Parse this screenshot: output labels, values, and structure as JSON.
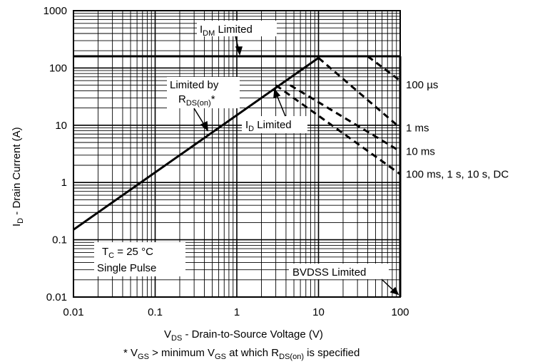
{
  "chart_data": {
    "type": "line",
    "scale": {
      "x": "log",
      "y": "log"
    },
    "xlim": [
      0.01,
      100
    ],
    "ylim": [
      0.01,
      1000
    ],
    "grid": true,
    "x_ticks": [
      "0.01",
      "0.1",
      "1",
      "10",
      "100"
    ],
    "y_ticks": [
      "0.01",
      "0.1",
      "1",
      "10",
      "100",
      "1000"
    ],
    "xlabel": {
      "main": "V",
      "sub": "DS",
      "rest": " - Drain-to-Source Voltage (V)"
    },
    "ylabel": {
      "main": "I",
      "sub": "D",
      "rest": " - Drain Current (A)"
    },
    "footnote": {
      "p1": "* V",
      "s1": "GS",
      "p2": " > minimum V",
      "s2": "GS",
      "p3": " at which R",
      "s3": "DS(on)",
      "p4": " is specified"
    },
    "series": [
      {
        "id": "rds_on",
        "style": "solid",
        "points": [
          [
            0.01,
            0.15
          ],
          [
            10,
            150
          ]
        ]
      },
      {
        "id": "idm",
        "style": "solid",
        "points": [
          [
            0.01,
            160
          ],
          [
            100,
            160
          ]
        ]
      },
      {
        "id": "bvdss",
        "style": "solid",
        "points": [
          [
            100,
            0.01
          ],
          [
            100,
            160
          ]
        ]
      },
      {
        "id": "100us",
        "name": "100 µs",
        "style": "dashed",
        "points": [
          [
            40,
            160
          ],
          [
            100,
            60
          ]
        ]
      },
      {
        "id": "1ms",
        "name": "1 ms",
        "style": "dashed",
        "points": [
          [
            10,
            150
          ],
          [
            100,
            9
          ]
        ]
      },
      {
        "id": "10ms",
        "name": "10 ms",
        "style": "dashed",
        "points": [
          [
            4.5,
            50
          ],
          [
            100,
            3.5
          ]
        ]
      },
      {
        "id": "100ms",
        "name": "100 ms, 1 s, 10 s, DC",
        "style": "dashed",
        "points": [
          [
            3,
            50
          ],
          [
            100,
            1.4
          ]
        ]
      }
    ],
    "annotations": {
      "idm_limited": {
        "main": "I",
        "sub": "DM",
        "rest": " Limited"
      },
      "rds_limited": {
        "line1": "Limited by",
        "main": "R",
        "sub": "DS(on)",
        "rest": "*"
      },
      "id_limited": {
        "main": "I",
        "sub": "D",
        "rest": " Limited"
      },
      "conditions": {
        "main": "T",
        "sub": "C",
        "rest": " = 25 °C",
        "line2": "Single Pulse"
      },
      "bvdss_limited": "BVDSS Limited"
    }
  }
}
